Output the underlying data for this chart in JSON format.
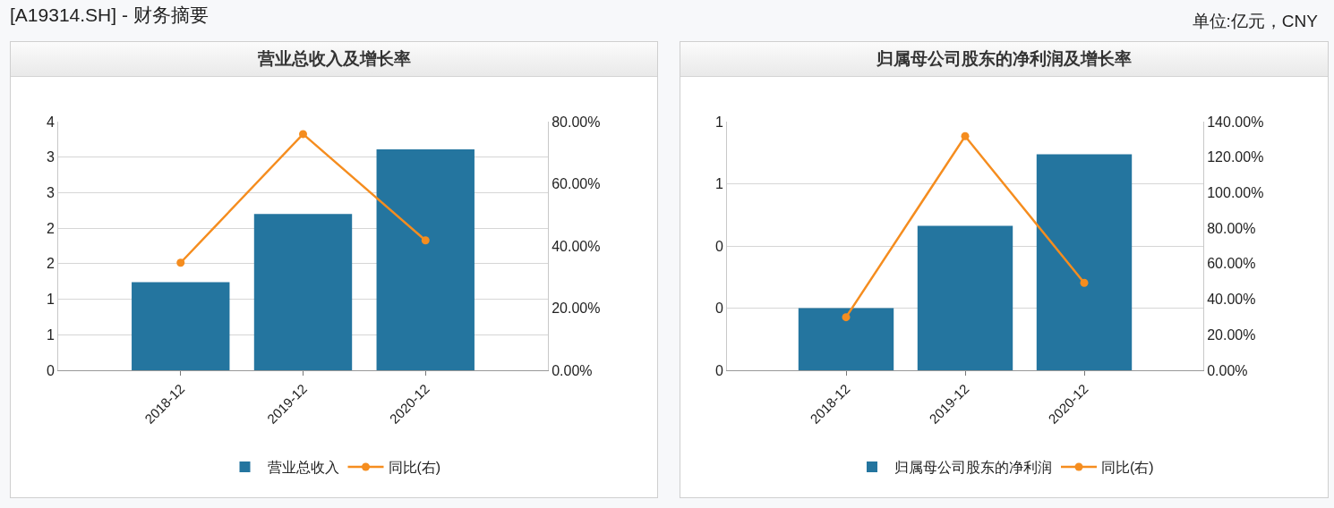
{
  "chart_data": [
    {
      "type": "bar",
      "title": "营业总收入及增长率",
      "annotations": [
        "[A19314.SH] - 财务摘要"
      ],
      "categories": [
        "2018-12",
        "2019-12",
        "2020-12"
      ],
      "series": [
        {
          "name": "营业总收入",
          "color": "#24759f",
          "values": [
            1.24,
            2.2,
            3.11
          ]
        },
        {
          "name": "同比(右)",
          "type": "line",
          "axis": "y2",
          "color": "#f58d1f",
          "values": [
            34.6,
            76,
            41.8
          ]
        }
      ],
      "ylim": [
        0,
        3.5
      ],
      "yticks": [
        0,
        {
          "value": 0.5,
          "label": "1"
        },
        1,
        {
          "value": 1.5,
          "label": "2"
        },
        2,
        {
          "value": 2.5,
          "label": "3"
        },
        3,
        {
          "value": 3.5,
          "label": "4"
        }
      ],
      "y2lim": [
        0,
        80
      ],
      "y2ticks": [
        {
          "value": 0,
          "label": "0.00%"
        },
        {
          "value": 20,
          "label": "20.00%"
        },
        {
          "value": 40,
          "label": "40.00%"
        },
        {
          "value": 60,
          "label": "60.00%"
        },
        {
          "value": 80,
          "label": "80.00%"
        }
      ],
      "grid": "y",
      "legend": "bottom",
      "marker": "circle",
      "line_style": "solid"
    },
    {
      "type": "bar",
      "title": "归属母公司股东的净利润及增长率",
      "annotations": [
        "单位:亿元，CNY"
      ],
      "categories": [
        "2018-12",
        "2019-12",
        "2020-12"
      ],
      "series": [
        {
          "name": "归属母公司股东的净利润",
          "color": "#24759f",
          "values": [
            0.2,
            0.465,
            0.695
          ]
        },
        {
          "name": "同比(右)",
          "type": "line",
          "axis": "y2",
          "color": "#f58d1f",
          "values": [
            29.9,
            131.8,
            49.2
          ]
        }
      ],
      "ylim": [
        0,
        0.8
      ],
      "yticks": [
        0,
        {
          "value": 0.2,
          "label": "0"
        },
        {
          "value": 0.4,
          "label": "0"
        },
        {
          "value": 0.6,
          "label": "1"
        },
        {
          "value": 0.8,
          "label": "1"
        }
      ],
      "y2lim": [
        0,
        140
      ],
      "y2ticks": [
        {
          "value": 0,
          "label": "0.00%"
        },
        {
          "value": 20,
          "label": "20.00%"
        },
        {
          "value": 40,
          "label": "40.00%"
        },
        {
          "value": 60,
          "label": "60.00%"
        },
        {
          "value": 80,
          "label": "80.00%"
        },
        {
          "value": 100,
          "label": "100.00%"
        },
        {
          "value": 120,
          "label": "120.00%"
        },
        {
          "value": 140,
          "label": "140.00%"
        }
      ],
      "grid": "y",
      "legend": "bottom",
      "marker": "circle",
      "line_style": "solid"
    }
  ]
}
